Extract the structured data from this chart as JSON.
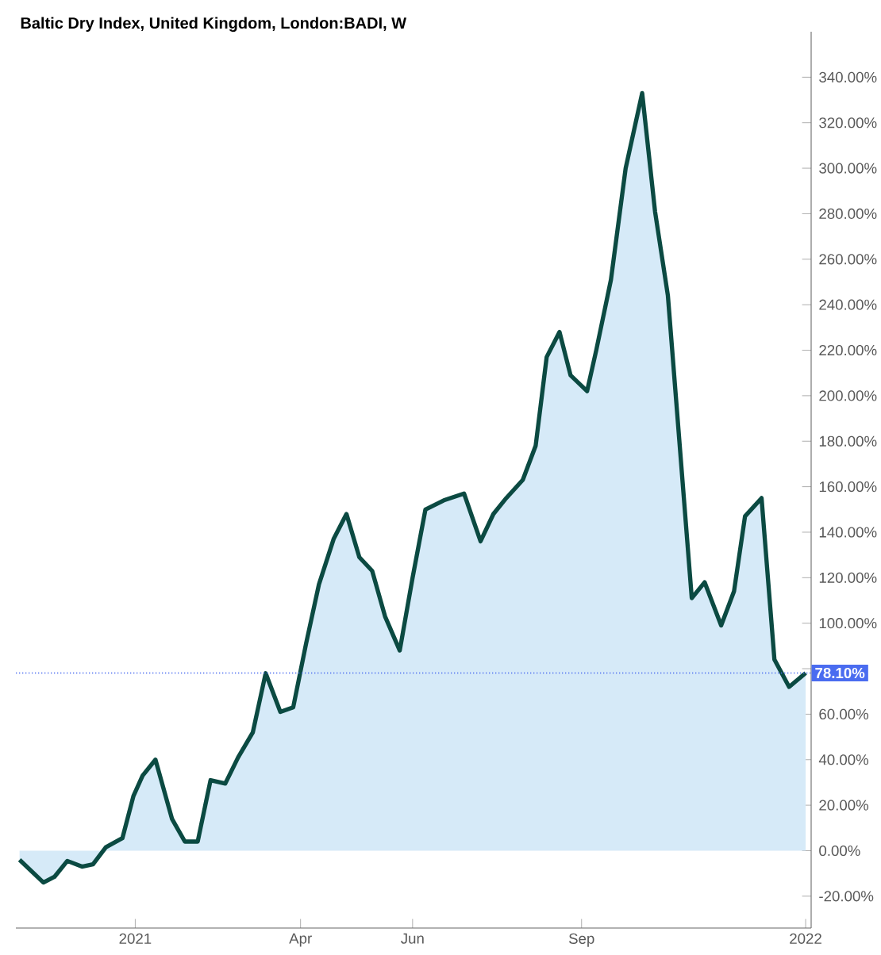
{
  "chart_data": {
    "type": "area",
    "title": "Baltic Dry Index, United Kingdom, London:BADI, W",
    "color": "#0b4a42",
    "x": [
      "2020-10-30",
      "2020-11-12",
      "2020-11-18",
      "2020-11-25",
      "2020-12-03",
      "2020-12-09",
      "2020-12-16",
      "2020-12-25",
      "2020-12-31",
      "2021-01-05",
      "2021-01-12",
      "2021-01-21",
      "2021-01-28",
      "2021-02-04",
      "2021-02-11",
      "2021-02-19",
      "2021-02-26",
      "2021-03-06",
      "2021-03-13",
      "2021-03-21",
      "2021-03-28",
      "2021-04-04",
      "2021-04-11",
      "2021-04-19",
      "2021-04-26",
      "2021-05-03",
      "2021-05-10",
      "2021-05-17",
      "2021-05-25",
      "2021-06-01",
      "2021-06-08",
      "2021-06-18",
      "2021-06-29",
      "2021-07-08",
      "2021-07-15",
      "2021-07-22",
      "2021-07-31",
      "2021-08-07",
      "2021-08-13",
      "2021-08-20",
      "2021-08-26",
      "2021-09-04",
      "2021-09-09",
      "2021-09-17",
      "2021-09-25",
      "2021-10-04",
      "2021-10-11",
      "2021-10-18",
      "2021-10-31",
      "2021-11-07",
      "2021-11-16",
      "2021-11-23",
      "2021-11-29",
      "2021-12-08",
      "2021-12-15",
      "2021-12-23",
      "2022-01-01"
    ],
    "values": [
      -4,
      -14,
      -11.5,
      -4.5,
      -7,
      -6,
      1.5,
      5.5,
      24,
      33,
      40,
      14,
      4,
      4,
      31,
      29.5,
      41,
      52,
      78,
      61,
      63,
      91,
      117,
      137,
      148,
      129,
      123,
      103,
      88,
      120,
      150,
      154,
      157,
      136,
      148,
      155,
      163,
      178,
      217,
      228,
      209,
      202,
      220,
      251,
      300,
      333,
      281,
      244,
      111,
      118,
      99,
      114,
      147,
      155,
      84,
      72,
      78.1
    ],
    "xlim": [
      "2020-10-28",
      "2022-01-04"
    ],
    "xticks": [
      {
        "value": "2021-01-01",
        "label": "2021"
      },
      {
        "value": "2021-04-01",
        "label": "Apr"
      },
      {
        "value": "2021-06-01",
        "label": "Jun"
      },
      {
        "value": "2021-09-01",
        "label": "Sep"
      },
      {
        "value": "2022-01-01",
        "label": "2022"
      }
    ],
    "ylim": [
      -34,
      360
    ],
    "yticks": [
      {
        "value": -20,
        "label": "-20.00%"
      },
      {
        "value": 0,
        "label": "0.00%"
      },
      {
        "value": 20,
        "label": "20.00%"
      },
      {
        "value": 40,
        "label": "40.00%"
      },
      {
        "value": 60,
        "label": "60.00%"
      },
      {
        "value": 80,
        "label": null
      },
      {
        "value": 100,
        "label": "100.00%"
      },
      {
        "value": 120,
        "label": "120.00%"
      },
      {
        "value": 140,
        "label": "140.00%"
      },
      {
        "value": 160,
        "label": "160.00%"
      },
      {
        "value": 180,
        "label": "180.00%"
      },
      {
        "value": 200,
        "label": "200.00%"
      },
      {
        "value": 220,
        "label": "220.00%"
      },
      {
        "value": 240,
        "label": "240.00%"
      },
      {
        "value": 260,
        "label": "260.00%"
      },
      {
        "value": 280,
        "label": "280.00%"
      },
      {
        "value": 300,
        "label": "300.00%"
      },
      {
        "value": 320,
        "label": "320.00%"
      },
      {
        "value": 340,
        "label": "340.00%"
      }
    ],
    "ref_lines": [
      {
        "axis": "y",
        "value": 78.1,
        "label": "78.10%",
        "color": "#4a6cf0",
        "line_style": "dotted"
      }
    ]
  }
}
